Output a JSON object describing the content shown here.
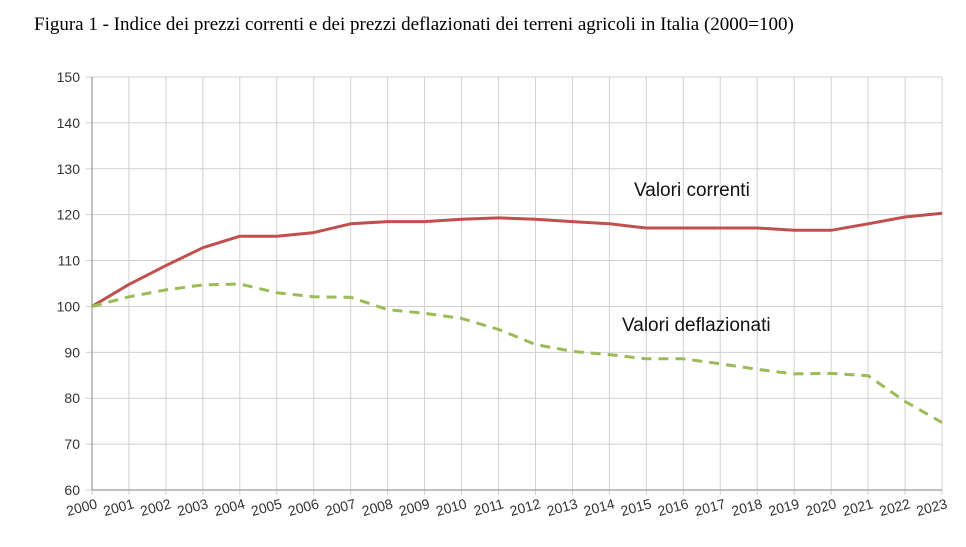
{
  "figure_title": "Figura 1 - Indice dei prezzi correnti e dei prezzi deflazionati dei terreni agricoli in Italia (2000=100)",
  "chart_data": {
    "type": "line",
    "title": "Figura 1 - Indice dei prezzi correnti e dei prezzi deflazionati dei terreni agricoli in Italia (2000=100)",
    "xlabel": "",
    "ylabel": "",
    "categories": [
      "2000",
      "2001",
      "2002",
      "2003",
      "2004",
      "2005",
      "2006",
      "2007",
      "2008",
      "2009",
      "2010",
      "2011",
      "2012",
      "2013",
      "2014",
      "2015",
      "2016",
      "2017",
      "2018",
      "2019",
      "2020",
      "2021",
      "2022",
      "2023"
    ],
    "ylim": [
      60,
      150
    ],
    "yticks": [
      60,
      70,
      80,
      90,
      100,
      110,
      120,
      130,
      140,
      150
    ],
    "grid": true,
    "legend": "none",
    "series": [
      {
        "name": "Valori correnti",
        "color": "#c0504d",
        "style": "solid",
        "values": [
          100,
          104.8,
          108.9,
          112.8,
          115.3,
          115.3,
          116.1,
          118.0,
          118.5,
          118.5,
          119.0,
          119.3,
          119.0,
          118.5,
          118.0,
          117.1,
          117.1,
          117.1,
          117.1,
          116.6,
          116.6,
          118.0,
          119.5,
          120.3
        ]
      },
      {
        "name": "Valori deflazionati",
        "color": "#9bbb59",
        "style": "dashed",
        "values": [
          100,
          102.1,
          103.6,
          104.7,
          104.9,
          103.0,
          102.1,
          102.0,
          99.3,
          98.5,
          97.4,
          95.0,
          91.7,
          90.2,
          89.5,
          88.6,
          88.6,
          87.5,
          86.3,
          85.3,
          85.4,
          84.9,
          79.3,
          74.7
        ]
      }
    ]
  }
}
